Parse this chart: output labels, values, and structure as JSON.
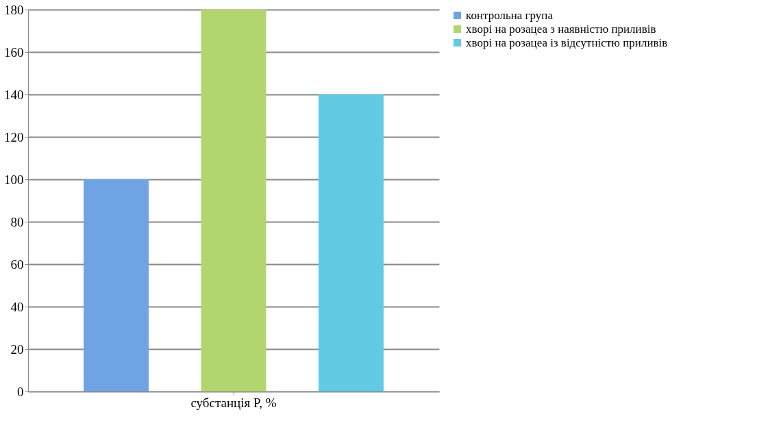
{
  "chart_data": {
    "type": "bar",
    "categories": [
      "субстанція Р, %"
    ],
    "series": [
      {
        "name": "контрольна група",
        "color": "#6fa3e3",
        "values": [
          100
        ]
      },
      {
        "name": "хворі на розацеа з наявністю приливів",
        "color": "#b3d56f",
        "values": [
          180
        ]
      },
      {
        "name": "хворі на розацеа із відсутністю приливів",
        "color": "#62cbe3",
        "values": [
          140
        ]
      }
    ],
    "ylim": [
      0,
      180
    ],
    "yticks": [
      0,
      20,
      40,
      60,
      80,
      100,
      120,
      140,
      160,
      180
    ],
    "grid": "y",
    "legend": "right"
  }
}
